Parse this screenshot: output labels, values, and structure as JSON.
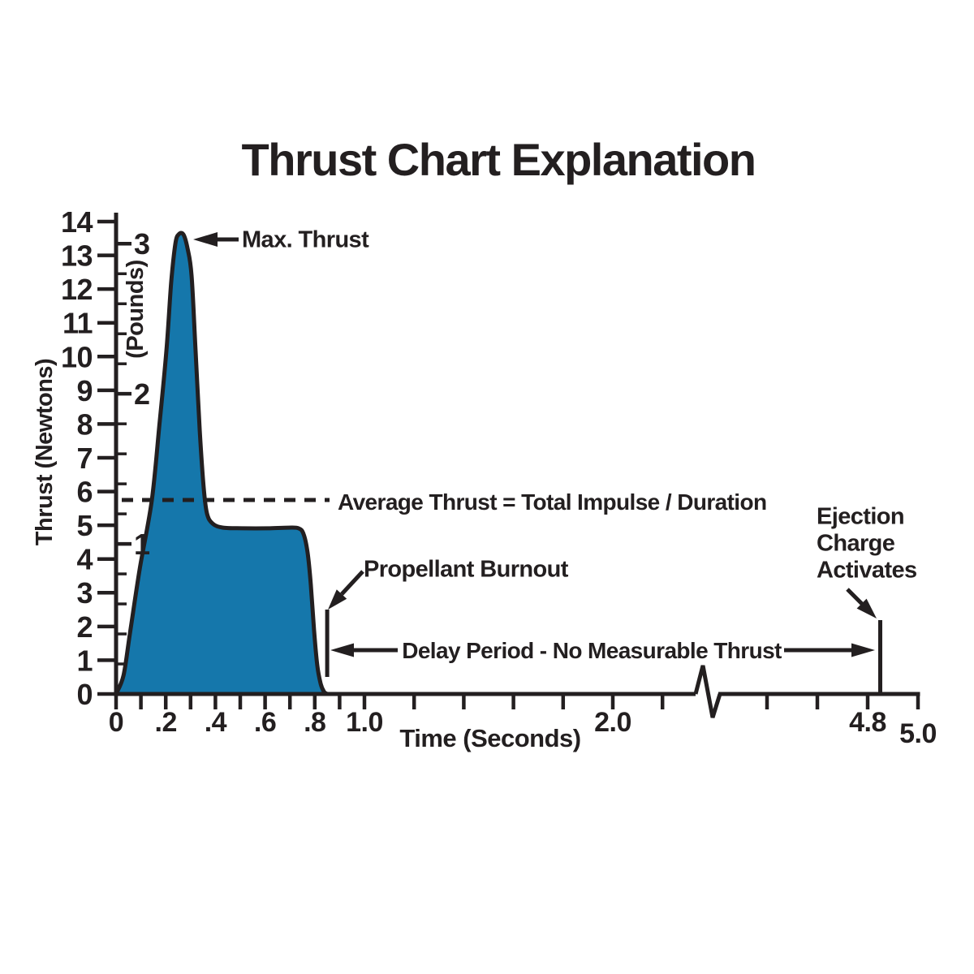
{
  "title": "Thrust Chart Explanation",
  "colors": {
    "curve_fill": "#1577AB",
    "ink": "#231F20",
    "background": "#FFFFFF"
  },
  "annotations": {
    "max_thrust": "Max. Thrust",
    "average": "Average Thrust = Total Impulse / Duration",
    "burnout": "Propellant Burnout",
    "delay": "Delay Period - No Measurable Thrust",
    "ejection": [
      "Ejection",
      "Charge",
      "Activates"
    ]
  },
  "chart_data": {
    "type": "area",
    "title": "Thrust Chart Explanation",
    "xlabel": "Time (Seconds)",
    "ylabel_left": "Thrust (Newtons)",
    "ylabel_right": "(Pounds)",
    "grid": false,
    "x_axis": {
      "units": "seconds",
      "break_after_t": 2.2,
      "resume_t": 4.4,
      "minor_ticks": [
        0,
        0.1,
        0.2,
        0.3,
        0.4,
        0.5,
        0.6,
        0.7,
        0.8,
        0.9,
        1.0,
        1.2,
        1.4,
        1.6,
        1.8,
        2.0,
        2.2,
        4.4,
        4.6,
        4.8,
        5.0
      ],
      "labeled_ticks": [
        {
          "t": 0.0,
          "label": "0"
        },
        {
          "t": 0.2,
          "label": ".2"
        },
        {
          "t": 0.4,
          "label": ".4"
        },
        {
          "t": 0.6,
          "label": ".6"
        },
        {
          "t": 0.8,
          "label": ".8"
        },
        {
          "t": 1.0,
          "label": "1.0"
        },
        {
          "t": 2.0,
          "label": "2.0"
        },
        {
          "t": 4.8,
          "label": "4.8"
        },
        {
          "t": 5.0,
          "label": "5.0"
        }
      ]
    },
    "y_axis_newtons": {
      "min": 0,
      "max": 14,
      "ticks": [
        0,
        1,
        2,
        3,
        4,
        5,
        6,
        7,
        8,
        9,
        10,
        11,
        12,
        13,
        14
      ]
    },
    "y_axis_pounds": {
      "labeled_ticks": [
        1,
        2,
        3
      ],
      "minor_ticks": [
        0.2,
        0.4,
        0.6,
        0.8,
        1.2,
        1.4,
        1.6,
        1.8,
        2.2,
        2.4,
        2.6,
        2.8,
        3.0
      ],
      "newtons_per_pound": 4.448
    },
    "average_thrust_newtons": 5.75,
    "max_thrust_newtons": 13.62,
    "max_thrust_time_s": 0.26,
    "burnout_time_s": 0.85,
    "ejection_time_s": 4.85,
    "series": [
      {
        "name": "thrust",
        "points": [
          [
            0.0,
            0.0
          ],
          [
            0.03,
            0.55
          ],
          [
            0.056,
            1.8
          ],
          [
            0.095,
            3.7
          ],
          [
            0.144,
            5.75
          ],
          [
            0.176,
            8.1
          ],
          [
            0.203,
            10.2
          ],
          [
            0.222,
            12.2
          ],
          [
            0.239,
            13.35
          ],
          [
            0.252,
            13.62
          ],
          [
            0.271,
            13.62
          ],
          [
            0.288,
            13.2
          ],
          [
            0.304,
            12.4
          ],
          [
            0.32,
            10.2
          ],
          [
            0.337,
            7.8
          ],
          [
            0.353,
            6.1
          ],
          [
            0.366,
            5.35
          ],
          [
            0.389,
            5.05
          ],
          [
            0.431,
            4.93
          ],
          [
            0.513,
            4.91
          ],
          [
            0.611,
            4.91
          ],
          [
            0.693,
            4.93
          ],
          [
            0.735,
            4.91
          ],
          [
            0.755,
            4.74
          ],
          [
            0.771,
            4.2
          ],
          [
            0.784,
            3.25
          ],
          [
            0.797,
            1.9
          ],
          [
            0.81,
            0.85
          ],
          [
            0.824,
            0.3
          ],
          [
            0.837,
            0.07
          ],
          [
            0.85,
            0.0
          ]
        ]
      }
    ]
  }
}
